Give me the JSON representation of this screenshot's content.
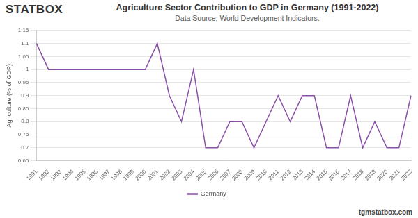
{
  "chart_data": {
    "type": "line",
    "title": "Agriculture Sector Contribution to GDP in Germany (1991-2022)",
    "subtitle": "Data Source: World Development Indicators.",
    "logo": "STATBOX",
    "watermark": "tgmstatbox.com",
    "y_label": "Agriculture (% of GDP)",
    "categories": [
      "1991",
      "1992",
      "1993",
      "1994",
      "1995",
      "1996",
      "1997",
      "1998",
      "1999",
      "2000",
      "2001",
      "2002",
      "2003",
      "2004",
      "2005",
      "2006",
      "2007",
      "2008",
      "2009",
      "2010",
      "2011",
      "2012",
      "2013",
      "2014",
      "2015",
      "2016",
      "2017",
      "2018",
      "2019",
      "2020",
      "2021",
      "2022"
    ],
    "series": [
      {
        "name": "Germany",
        "color": "#8a4fa8",
        "values": [
          1.1,
          1.0,
          1.0,
          1.0,
          1.0,
          1.0,
          1.0,
          1.0,
          1.0,
          1.0,
          1.1,
          0.9,
          0.8,
          1.0,
          0.7,
          0.7,
          0.8,
          0.8,
          0.7,
          0.8,
          0.9,
          0.8,
          0.9,
          0.9,
          0.7,
          0.7,
          0.9,
          0.7,
          0.8,
          0.7,
          0.7,
          0.9
        ]
      }
    ],
    "ylim": [
      0.65,
      1.15
    ],
    "yticks": [
      0.65,
      0.7,
      0.75,
      0.8,
      0.85,
      0.9,
      0.95,
      1,
      1.05,
      1.1,
      1.15
    ],
    "grid": true,
    "legend": "bottom"
  }
}
